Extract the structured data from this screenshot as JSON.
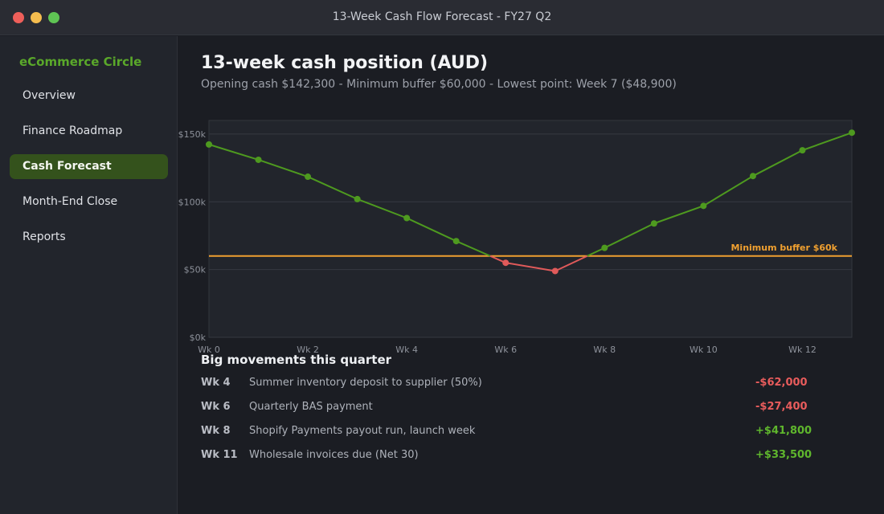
{
  "window": {
    "title": "13-Week Cash Flow Forecast - FY27 Q2"
  },
  "sidebar": {
    "brand": "eCommerce Circle",
    "items": [
      {
        "label": "Overview",
        "active": false
      },
      {
        "label": "Finance Roadmap",
        "active": false
      },
      {
        "label": "Cash Forecast",
        "active": true
      },
      {
        "label": "Month-End Close",
        "active": false
      },
      {
        "label": "Reports",
        "active": false
      }
    ]
  },
  "main": {
    "title": "13-week cash position (AUD)",
    "subtitle": "Opening cash $142,300  -  Minimum buffer $60,000  -  Lowest point: Week 7 ($48,900)"
  },
  "chart_data": {
    "type": "line",
    "x": [
      0,
      1,
      2,
      3,
      4,
      5,
      6,
      7,
      8,
      9,
      10,
      11,
      12,
      13
    ],
    "values": [
      142300,
      131000,
      118500,
      102000,
      88000,
      71000,
      55000,
      48900,
      66000,
      84000,
      97000,
      119000,
      138000,
      151000
    ],
    "x_tick_labels": [
      "Wk 0",
      "Wk 2",
      "Wk 4",
      "Wk 6",
      "Wk 8",
      "Wk 10",
      "Wk 12"
    ],
    "x_tick_values": [
      0,
      2,
      4,
      6,
      8,
      10,
      12
    ],
    "y_tick_labels": [
      "$0k",
      "$50k",
      "$100k",
      "$150k"
    ],
    "y_tick_values": [
      0,
      50000,
      100000,
      150000
    ],
    "xlim": [
      0,
      13
    ],
    "ylim": [
      0,
      160000
    ],
    "grid": true,
    "threshold": {
      "value": 60000,
      "label": "Minimum buffer $60k"
    },
    "colors": {
      "above": "#4e9a1f",
      "below": "#e05a5a",
      "threshold": "#f0a030"
    }
  },
  "movements": {
    "title": "Big movements this quarter",
    "rows": [
      {
        "week": "Wk 4",
        "description": "Summer inventory deposit to supplier (50%)",
        "amount": "-$62,000",
        "sign": "neg"
      },
      {
        "week": "Wk 6",
        "description": "Quarterly BAS payment",
        "amount": "-$27,400",
        "sign": "neg"
      },
      {
        "week": "Wk 8",
        "description": "Shopify Payments payout run, launch week",
        "amount": "+$41,800",
        "sign": "pos"
      },
      {
        "week": "Wk 11",
        "description": "Wholesale invoices due (Net 30)",
        "amount": "+$33,500",
        "sign": "pos"
      }
    ]
  }
}
